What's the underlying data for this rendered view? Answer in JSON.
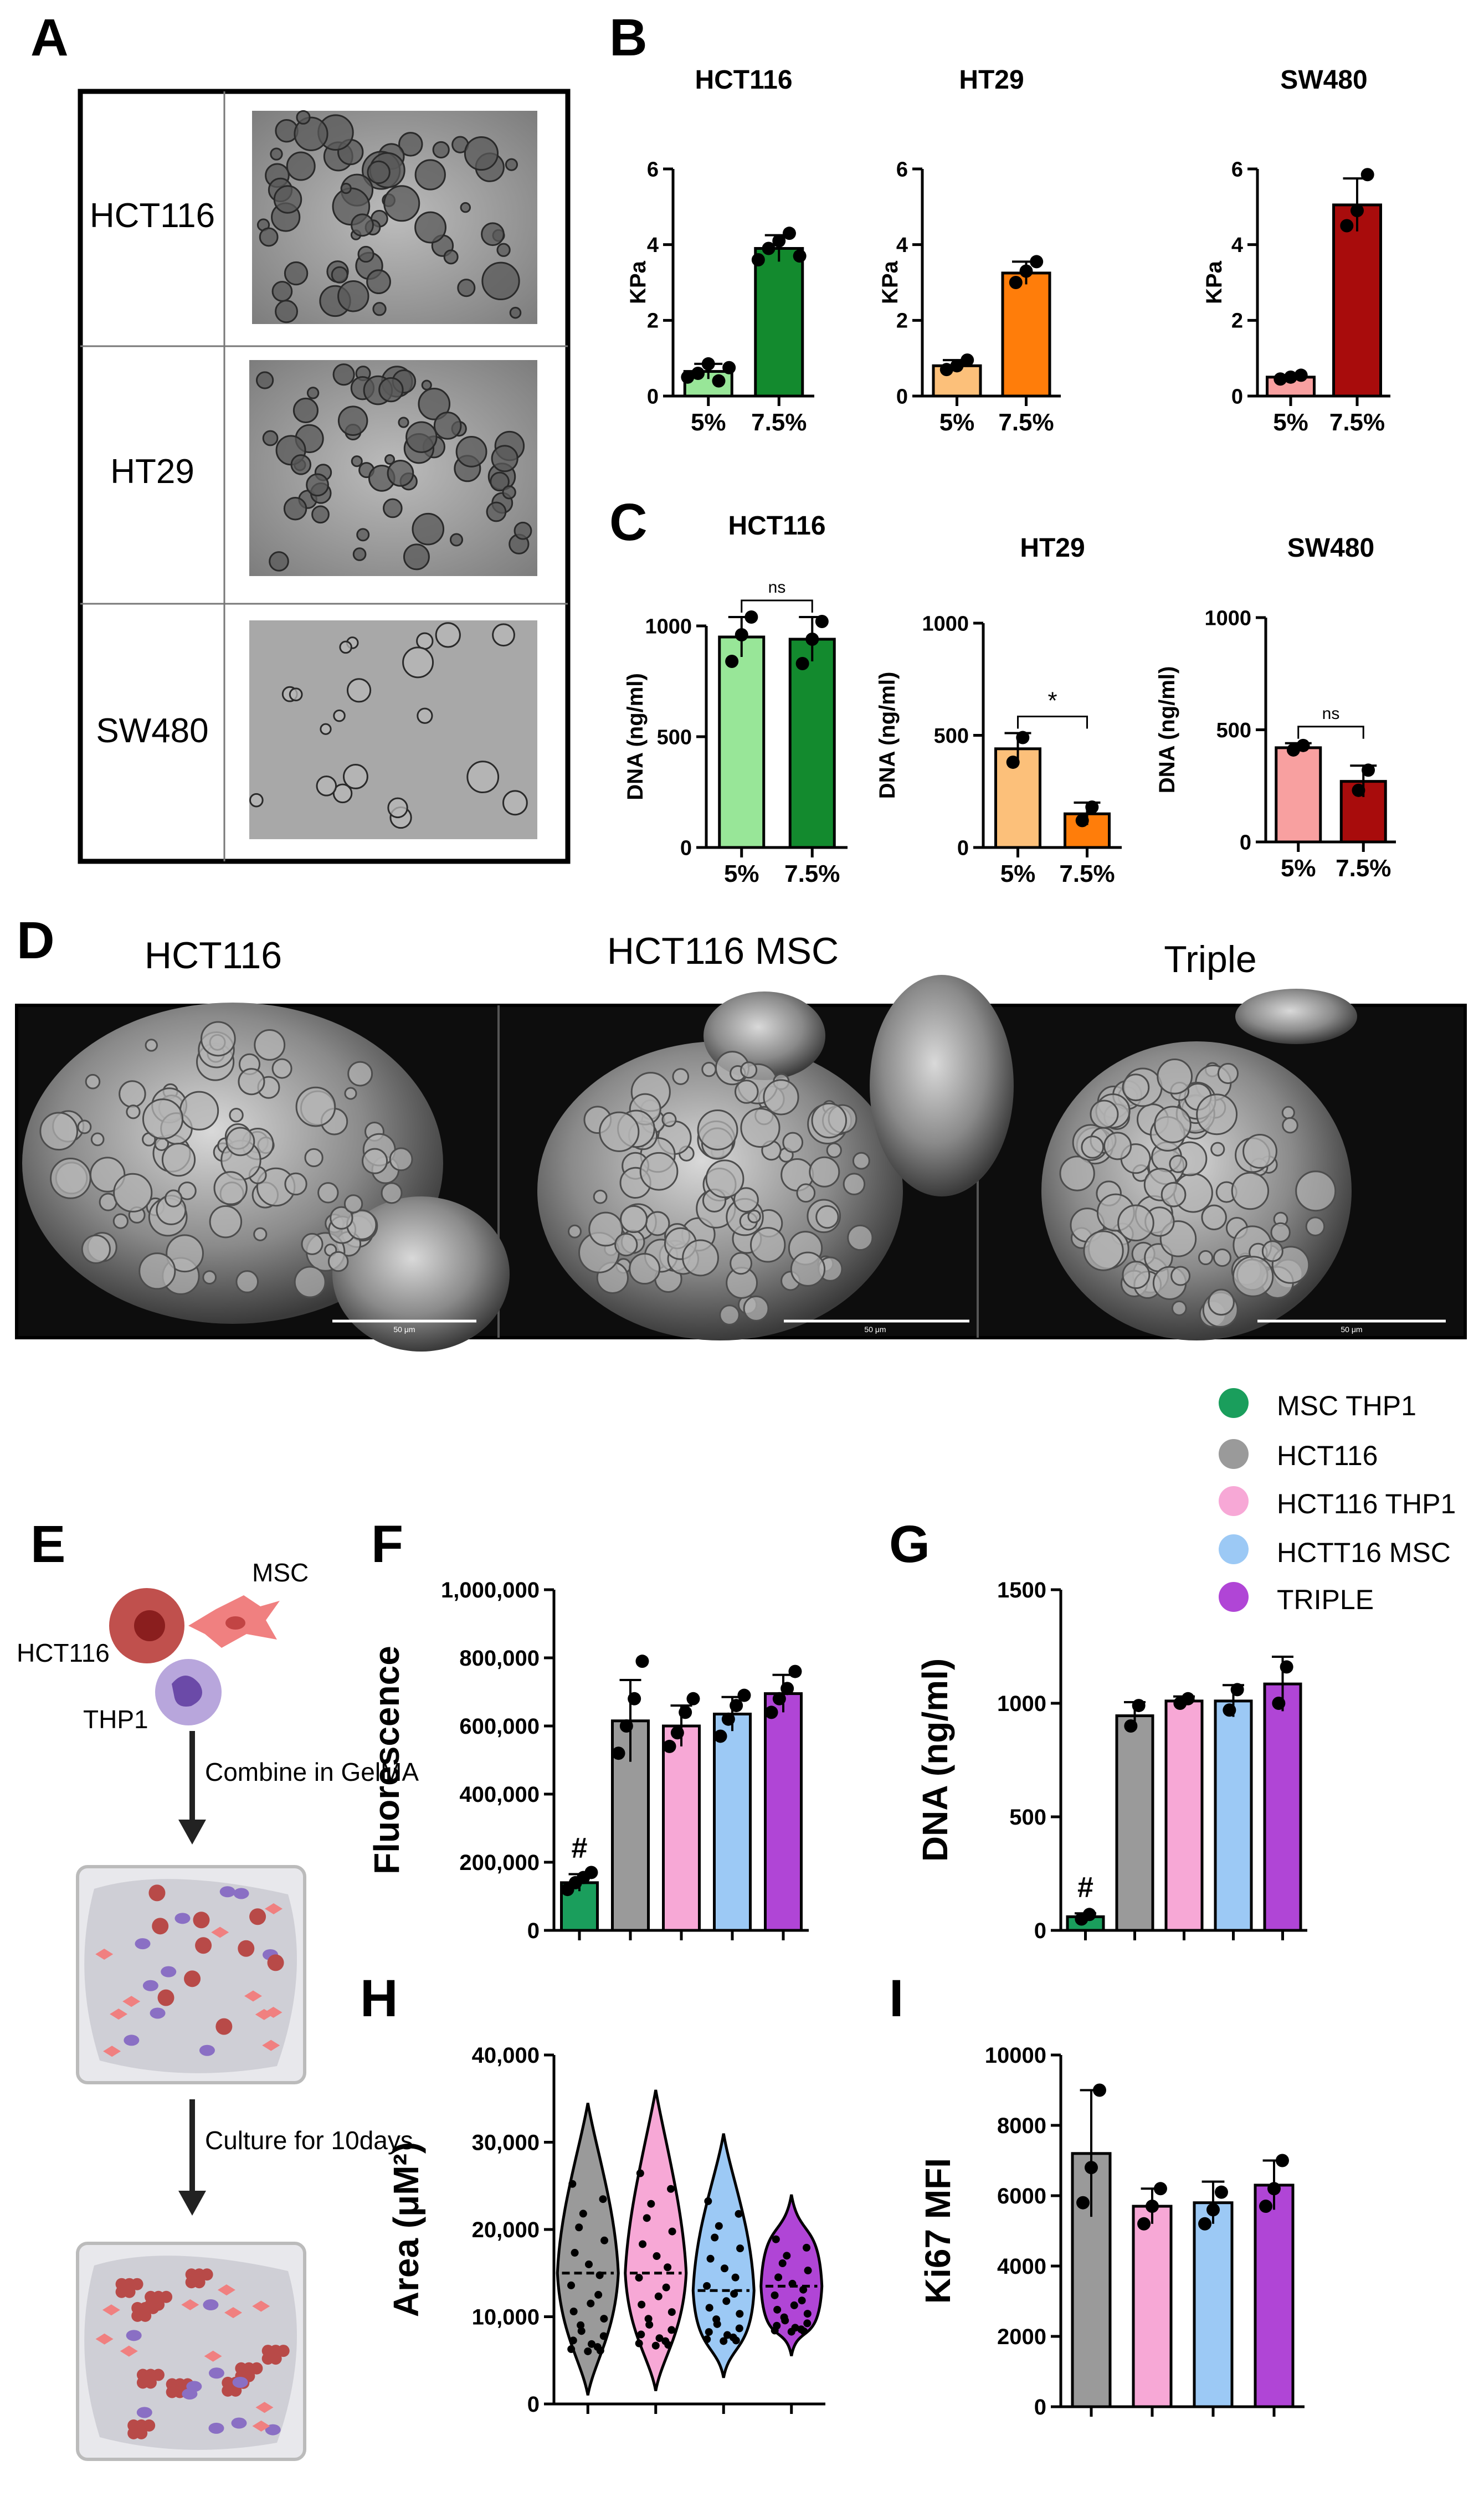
{
  "panel_letters": {
    "A": "A",
    "B": "B",
    "C": "C",
    "D": "D",
    "E": "E",
    "F": "F",
    "G": "G",
    "H": "H",
    "I": "I"
  },
  "panel_a": {
    "rows": [
      {
        "label": "HCT116"
      },
      {
        "label": "HT29"
      },
      {
        "label": "SW480"
      }
    ]
  },
  "panel_d": {
    "titles": [
      "HCT116",
      "HCT116 MSC",
      "Triple"
    ],
    "scale_bar_label": "50 μm"
  },
  "panel_e": {
    "cells": {
      "msc": "MSC",
      "hct116": "HCT116",
      "thp1": "THP1"
    },
    "steps": [
      "Combine in GelMA",
      "Culture for 10days"
    ]
  },
  "legend": [
    {
      "label": "MSC THP1",
      "color": "#1a9e5c"
    },
    {
      "label": "HCT116",
      "color": "#9a9a9a"
    },
    {
      "label": "HCT116 THP1",
      "color": "#f7a8d6"
    },
    {
      "label": "HCTT16 MSC",
      "color": "#9cc9f5"
    },
    {
      "label": "TRIPLE",
      "color": "#b045d6"
    }
  ],
  "colors": {
    "hct_light": "#98e698",
    "hct_dark": "#138a2e",
    "ht_light": "#fcc07a",
    "ht_dark": "#ff7d0a",
    "sw_light": "#f8a0a0",
    "sw_dark": "#a80c0c"
  },
  "chart_data": [
    {
      "id": "B1",
      "type": "bar",
      "title": "HCT116",
      "ylabel": "KPa",
      "ylim": [
        0,
        6
      ],
      "yticks": [
        "0",
        "2",
        "4",
        "6"
      ],
      "categories": [
        "5%",
        "7.5%"
      ],
      "values": [
        0.65,
        3.9
      ],
      "errors": [
        0.2,
        0.35
      ],
      "points": [
        [
          0.5,
          0.6,
          0.85,
          0.4,
          0.75
        ],
        [
          3.6,
          3.9,
          4.1,
          4.3,
          3.7
        ]
      ],
      "colors": [
        "#98e698",
        "#138a2e"
      ]
    },
    {
      "id": "B2",
      "type": "bar",
      "title": "HT29",
      "ylabel": "KPa",
      "ylim": [
        0,
        6
      ],
      "yticks": [
        "0",
        "2",
        "4",
        "6"
      ],
      "categories": [
        "5%",
        "7.5%"
      ],
      "values": [
        0.8,
        3.25
      ],
      "errors": [
        0.15,
        0.3
      ],
      "points": [
        [
          0.7,
          0.8,
          0.95
        ],
        [
          3.0,
          3.3,
          3.55
        ]
      ],
      "colors": [
        "#fcc07a",
        "#ff7d0a"
      ]
    },
    {
      "id": "B3",
      "type": "bar",
      "title": "SW480",
      "ylabel": "KPa",
      "ylim": [
        0,
        6
      ],
      "yticks": [
        "0",
        "2",
        "4",
        "6"
      ],
      "categories": [
        "5%",
        "7.5%"
      ],
      "values": [
        0.5,
        5.05
      ],
      "errors": [
        0.05,
        0.7
      ],
      "points": [
        [
          0.45,
          0.5,
          0.55
        ],
        [
          4.5,
          4.9,
          5.85
        ]
      ],
      "colors": [
        "#f8a0a0",
        "#a80c0c"
      ]
    },
    {
      "id": "C1",
      "type": "bar",
      "title": "HCT116",
      "ylabel": "DNA (ng/ml)",
      "ylim": [
        0,
        1000
      ],
      "yticks": [
        "0",
        "500",
        "1000"
      ],
      "categories": [
        "5%",
        "7.5%"
      ],
      "values": [
        950,
        940
      ],
      "errors": [
        90,
        100
      ],
      "points": [
        [
          840,
          960,
          1040
        ],
        [
          830,
          940,
          1020
        ]
      ],
      "colors": [
        "#98e698",
        "#138a2e"
      ],
      "significance": "ns"
    },
    {
      "id": "C2",
      "type": "bar",
      "title": "HT29",
      "ylabel": "DNA (ng/ml)",
      "ylim": [
        0,
        1000
      ],
      "yticks": [
        "0",
        "500",
        "1000"
      ],
      "categories": [
        "5%",
        "7.5%"
      ],
      "values": [
        440,
        150
      ],
      "errors": [
        70,
        50
      ],
      "points": [
        [
          380,
          490
        ],
        [
          120,
          180
        ]
      ],
      "colors": [
        "#fcc07a",
        "#ff7d0a"
      ],
      "significance": "*"
    },
    {
      "id": "C3",
      "type": "bar",
      "title": "SW480",
      "ylabel": "DNA (ng/ml)",
      "ylim": [
        0,
        1000
      ],
      "yticks": [
        "0",
        "500",
        "1000"
      ],
      "categories": [
        "5%",
        "7.5%"
      ],
      "values": [
        420,
        270
      ],
      "errors": [
        20,
        70
      ],
      "points": [
        [
          410,
          430
        ],
        [
          230,
          320
        ]
      ],
      "colors": [
        "#f8a0a0",
        "#a80c0c"
      ],
      "significance": "ns"
    },
    {
      "id": "F",
      "type": "bar",
      "ylabel": "Fluorescence",
      "ylim": [
        0,
        1000000
      ],
      "yticks": [
        "0",
        "200,000",
        "400,000",
        "600,000",
        "800,000",
        "1,000,000"
      ],
      "categories": [
        "MSC THP1",
        "HCT116",
        "HCT116 THP1",
        "HCTT16 MSC",
        "TRIPLE"
      ],
      "values": [
        140000,
        615000,
        600000,
        635000,
        695000
      ],
      "errors": [
        25000,
        120000,
        60000,
        50000,
        55000
      ],
      "points": [
        [
          120000,
          140000,
          155000,
          170000
        ],
        [
          520000,
          600000,
          680000,
          790000
        ],
        [
          540000,
          580000,
          640000,
          680000
        ],
        [
          570000,
          620000,
          660000,
          690000
        ],
        [
          640000,
          680000,
          710000,
          760000
        ]
      ],
      "colors": [
        "#1a9e5c",
        "#9a9a9a",
        "#f7a8d6",
        "#9cc9f5",
        "#b045d6"
      ],
      "annotation": "#"
    },
    {
      "id": "G",
      "type": "bar",
      "ylabel": "DNA (ng/ml)",
      "ylim": [
        0,
        1500
      ],
      "yticks": [
        "0",
        "500",
        "1000",
        "1500"
      ],
      "categories": [
        "MSC THP1",
        "HCT116",
        "HCT116 THP1",
        "HCTT16 MSC",
        "TRIPLE"
      ],
      "values": [
        60,
        945,
        1010,
        1010,
        1085
      ],
      "errors": [
        15,
        60,
        20,
        70,
        120
      ],
      "points": [
        [
          50,
          70
        ],
        [
          900,
          990
        ],
        [
          1000,
          1020
        ],
        [
          970,
          1060
        ],
        [
          1000,
          1160
        ]
      ],
      "colors": [
        "#1a9e5c",
        "#9a9a9a",
        "#f7a8d6",
        "#9cc9f5",
        "#b045d6"
      ],
      "annotation": "#"
    },
    {
      "id": "H",
      "type": "violin",
      "ylabel": "Area (μM²)",
      "ylim": [
        0,
        40000
      ],
      "yticks": [
        "0",
        "10,000",
        "20,000",
        "30,000",
        "40,000"
      ],
      "categories": [
        "HCT116",
        "HCT116 THP1",
        "HCTT16 MSC",
        "TRIPLE"
      ],
      "ranges": [
        [
          1000,
          34500
        ],
        [
          1500,
          36000
        ],
        [
          3000,
          31000
        ],
        [
          5500,
          24000
        ]
      ],
      "medians": [
        15000,
        15000,
        13000,
        13500
      ],
      "colors": [
        "#9a9a9a",
        "#f7a8d6",
        "#9cc9f5",
        "#b045d6"
      ]
    },
    {
      "id": "I",
      "type": "bar",
      "ylabel": "Ki67 MFI",
      "ylim": [
        0,
        10000
      ],
      "yticks": [
        "0",
        "2000",
        "4000",
        "6000",
        "8000",
        "10000"
      ],
      "categories": [
        "HCT116",
        "HCT116 THP1",
        "HCTT16 MSC",
        "TRIPLE"
      ],
      "values": [
        7200,
        5700,
        5800,
        6300
      ],
      "errors": [
        1800,
        500,
        600,
        700
      ],
      "points": [
        [
          5800,
          6800,
          9000
        ],
        [
          5200,
          5700,
          6200
        ],
        [
          5200,
          5600,
          6100
        ],
        [
          5700,
          6200,
          7000
        ]
      ],
      "colors": [
        "#9a9a9a",
        "#f7a8d6",
        "#9cc9f5",
        "#b045d6"
      ]
    }
  ]
}
